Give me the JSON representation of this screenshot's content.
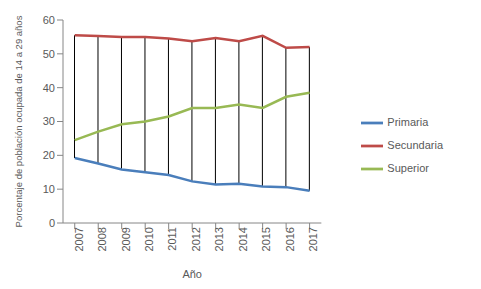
{
  "chart_data": {
    "type": "line",
    "x_label": "Año",
    "y_label": "Porcentaje de población ocupada de 14 a 29 años",
    "categories": [
      "2007",
      "2008",
      "2009",
      "2010",
      "2011",
      "2012",
      "2013",
      "2014",
      "2015",
      "2016",
      "2017"
    ],
    "series": [
      {
        "name": "Primaria",
        "color": "#4a7ebb",
        "values": [
          19.2,
          17.6,
          15.8,
          15.0,
          14.2,
          12.3,
          11.4,
          11.6,
          10.8,
          10.6,
          9.5
        ]
      },
      {
        "name": "Secundaria",
        "color": "#be4b48",
        "values": [
          55.5,
          55.3,
          55.0,
          55.0,
          54.5,
          53.7,
          54.7,
          53.7,
          55.3,
          51.8,
          52.0
        ]
      },
      {
        "name": "Superior",
        "color": "#98b954",
        "values": [
          24.5,
          27.0,
          29.2,
          30.0,
          31.5,
          34.0,
          34.0,
          35.0,
          34.0,
          37.3,
          38.5
        ]
      }
    ],
    "ylim": [
      0,
      60
    ],
    "yticks": [
      0,
      10,
      20,
      30,
      40,
      50,
      60
    ],
    "grid": false,
    "legend": "right"
  }
}
